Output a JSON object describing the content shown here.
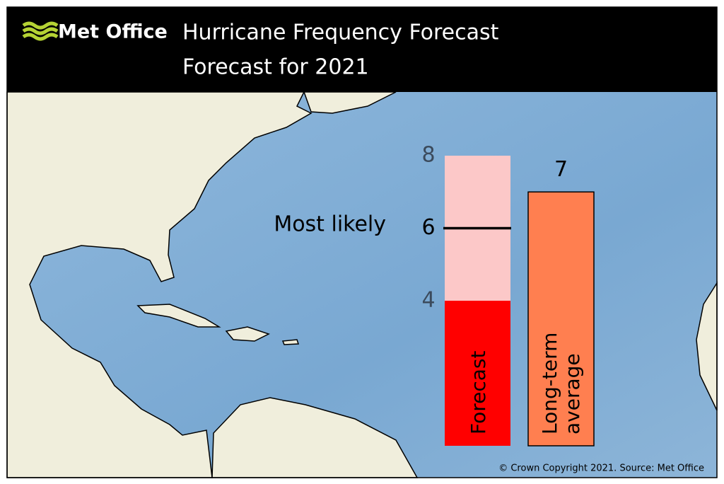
{
  "header": {
    "logo": "Met Office",
    "title": "Hurricane Frequency Forecast",
    "subtitle": "Forecast for 2021"
  },
  "chart_data": {
    "type": "forecast-range",
    "ylim": [
      0,
      8
    ],
    "most_likely_label": "Most likely",
    "forecast": {
      "name": "Forecast",
      "low": 4,
      "most_likely": 6,
      "high": 8,
      "low_color": "#ff0000",
      "range_color": "#fcc8c8"
    },
    "average": {
      "name": "Long-term average",
      "value": 7,
      "color": "#ff7f50"
    }
  },
  "footer": {
    "credit": "© Crown Copyright 2021. Source: Met Office"
  }
}
